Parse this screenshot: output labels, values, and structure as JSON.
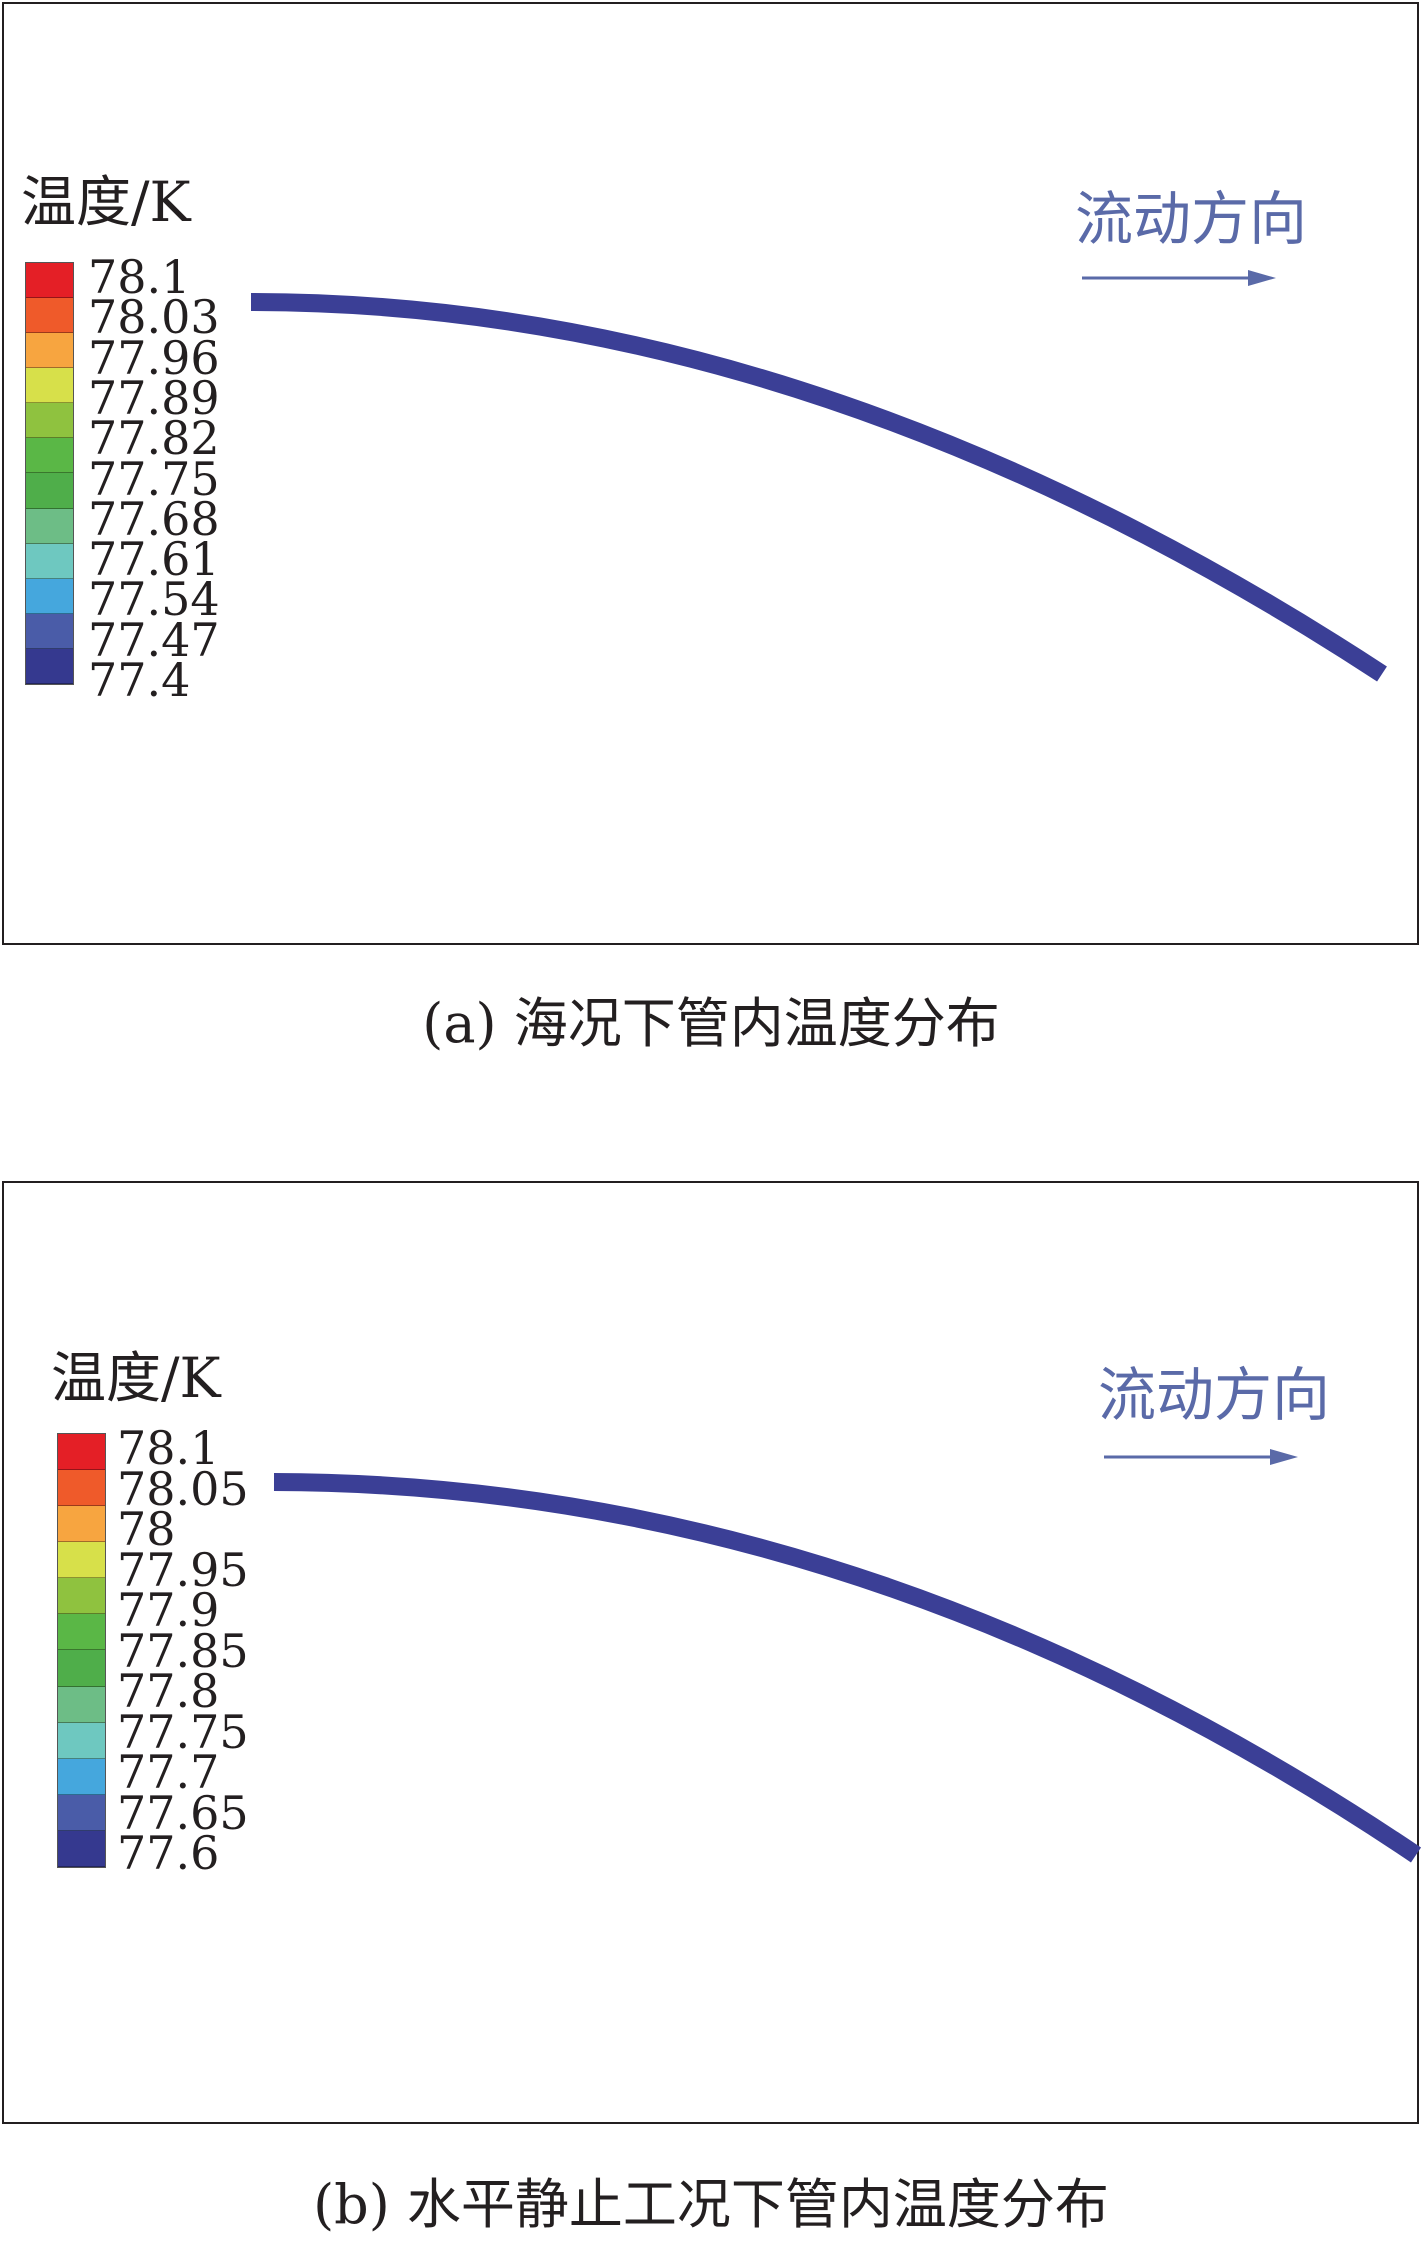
{
  "colors": {
    "pipe": "#3b3f96",
    "flow_arrow": "#5a6aa8",
    "legend_scale": [
      "#e41f26",
      "#ef5a2a",
      "#f7a540",
      "#d7e04a",
      "#8fc23f",
      "#5ab746",
      "#4fae4a",
      "#6dbd86",
      "#6ec8c0",
      "#45a7dd",
      "#4a5ca8",
      "#35398f"
    ]
  },
  "panels": [
    {
      "legend_title": "温度/K",
      "legend_labels": [
        "78.1",
        "78.03",
        "77.96",
        "77.89",
        "77.82",
        "77.75",
        "77.68",
        "77.61",
        "77.54",
        "77.47",
        "77.4"
      ],
      "flow_label": "流动方向",
      "caption": "(a) 海况下管内温度分布"
    },
    {
      "legend_title": "温度/K",
      "legend_labels": [
        "78.1",
        "78.05",
        "78",
        "77.95",
        "77.9",
        "77.85",
        "77.8",
        "77.75",
        "77.7",
        "77.65",
        "77.6"
      ],
      "flow_label": "流动方向",
      "caption": "(b) 水平静止工况下管内温度分布"
    }
  ]
}
